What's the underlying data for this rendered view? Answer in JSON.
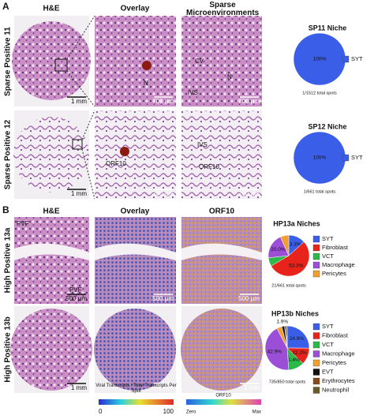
{
  "panel_a": {
    "label": "A",
    "headers": [
      "H&E",
      "Overlay",
      "Sparse Microenvironments"
    ],
    "rows": [
      {
        "label": "Sparse Positive 11",
        "scale_bars": [
          "1 mm",
          "700 µm",
          "700 µm"
        ],
        "annotations": [
          "N",
          "CV",
          "IVS",
          "N"
        ]
      },
      {
        "label": "Sparse Positive 12",
        "scale_bars": [
          "1 mm",
          "200 µm",
          "200 µm"
        ],
        "annotations": [
          "ORF10",
          "IVS",
          "ORF10"
        ]
      }
    ]
  },
  "panel_b": {
    "label": "B",
    "headers": [
      "H&E",
      "Overlay",
      "ORF10"
    ],
    "rows": [
      {
        "label": "High Positive 13a",
        "scale_bars": [
          "500 µm",
          "500 µm",
          "500 µm"
        ],
        "annotations": [
          "PVF",
          "PVF"
        ]
      },
      {
        "label": "High Positive 13b",
        "scale_bars": [
          "1 mm",
          "1 mm",
          "1 mm"
        ],
        "annotations": []
      }
    ],
    "colorbars": [
      {
        "title": "Viral Transcripts / Total Transcripts Per Spot",
        "min_label": "0",
        "max_label": "100"
      },
      {
        "title": "ORF10",
        "min_label": "Zero",
        "max_label": "Max"
      }
    ]
  },
  "chart_data": [
    {
      "type": "pie",
      "title": "SP11 Niche",
      "categories": [
        "SYT"
      ],
      "values": [
        100
      ],
      "value_labels": [
        "100%"
      ],
      "colors": [
        "#3b5ee8"
      ],
      "caption": "1/1512 total spots"
    },
    {
      "type": "pie",
      "title": "SP12 Niche",
      "categories": [
        "SYT"
      ],
      "values": [
        100
      ],
      "value_labels": [
        "100%"
      ],
      "colors": [
        "#3b5ee8"
      ],
      "caption": "1/661 total spots"
    },
    {
      "type": "pie",
      "title": "HP13a Niches",
      "categories": [
        "SYT",
        "Fibroblast",
        "VCT",
        "Macrophage",
        "Pericytes"
      ],
      "values": [
        13.3,
        53.3,
        6.7,
        20.0,
        6.7
      ],
      "value_labels": [
        "13.3%",
        "53.3%",
        null,
        "20.0%",
        null
      ],
      "colors": [
        "#3b5ee8",
        "#e8231c",
        "#2db84a",
        "#9b4fd6",
        "#f0a030"
      ],
      "caption": "21/661 total spots"
    },
    {
      "type": "pie",
      "title": "HP13b Niches",
      "categories": [
        "SYT",
        "Fibroblast",
        "VCT",
        "Macrophage",
        "Pericytes",
        "EVT",
        "Erythrocytes",
        "Neutrophil"
      ],
      "values": [
        24.9,
        12.2,
        11.4,
        42.9,
        3.8,
        1.9,
        1.0,
        1.0
      ],
      "value_labels": [
        "24.9%",
        "12.2%",
        "11.4%",
        "42.9%",
        null,
        "1.9%",
        null,
        null
      ],
      "colors": [
        "#3b5ee8",
        "#e8231c",
        "#2db84a",
        "#9b4fd6",
        "#f0a030",
        "#111111",
        "#8b4a1a",
        "#6b5a2a"
      ],
      "caption": "735/850 total spots"
    }
  ]
}
